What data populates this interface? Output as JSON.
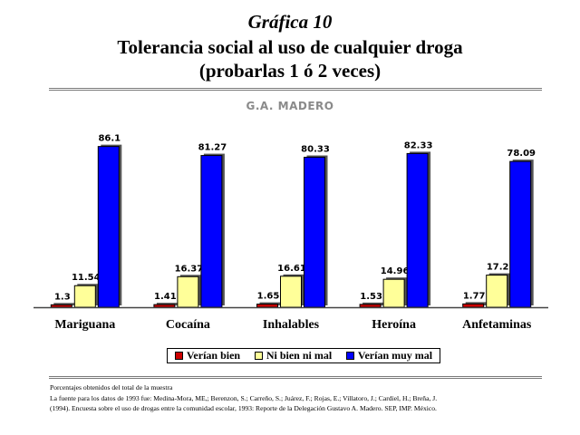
{
  "figure_label": "Gráfica 10",
  "title_lines": [
    "Tolerancia social al uso de cualquier droga",
    "(probarlas 1 ó 2 veces)"
  ],
  "subtitle": "G.A. MADERO",
  "chart_data": {
    "type": "bar",
    "title": "Tolerancia social al uso de cualquier droga (probarlas 1 ó 2 veces)",
    "subtitle": "G.A. MADERO",
    "categories": [
      "Mariguana",
      "Cocaína",
      "Inhalables",
      "Heroína",
      "Anfetaminas"
    ],
    "value_labels": [
      [
        "1.3",
        "11.54",
        "86.1"
      ],
      [
        "1.41",
        "16.37",
        "81.27"
      ],
      [
        "1.65",
        "16.61",
        "80.33"
      ],
      [
        "1.53",
        "14.96",
        "82.33"
      ],
      [
        "1.77",
        "17.2",
        "78.09"
      ]
    ],
    "series": [
      {
        "name": "Verían bien",
        "color": "#cc0000",
        "values": [
          1.3,
          1.41,
          1.65,
          1.53,
          1.77
        ]
      },
      {
        "name": "Ni bien ni mal",
        "color": "#ffff99",
        "values": [
          11.54,
          16.37,
          16.61,
          14.96,
          17.2
        ]
      },
      {
        "name": "Verían muy mal",
        "color": "#0000ff",
        "values": [
          86.1,
          81.27,
          80.33,
          82.33,
          78.09
        ]
      }
    ],
    "ylim": [
      0,
      100
    ],
    "grid": false,
    "legend_position": "bottom"
  },
  "notes": [
    "Porcentajes obtenidos del total de la muestra",
    "La fuente para los datos de 1993 fue: Medina-Mora, ME,; Berenzon, S.; Carreño, S.; Juárez, F.; Rojas, E.; Villatoro, J.; Cardiel, H.; Breña, J.",
    "(1994). Encuesta sobre el uso de drogas entre la comunidad escolar, 1993: Reporte de la Delegación Gustavo A. Madero. SEP, IMP. México."
  ]
}
